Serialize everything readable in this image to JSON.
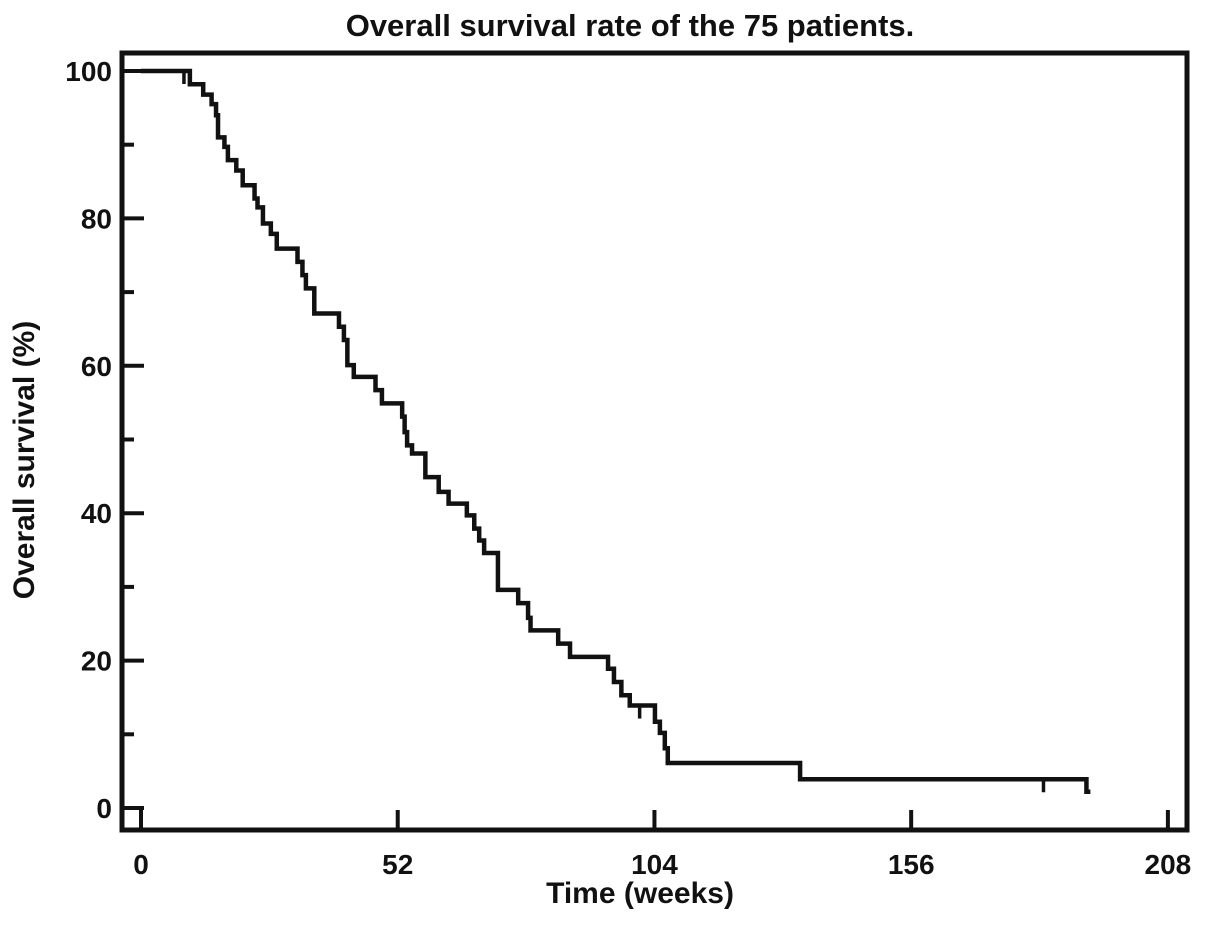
{
  "figure": {
    "title": "Overall survival rate of the 75 patients."
  },
  "colors": {
    "line": "#111111",
    "background": "#ffffff"
  },
  "chart_data": {
    "type": "line",
    "subtype": "kaplan-meier-step-curve",
    "title": "Overall survival rate of the 75 patients.",
    "xlabel": "Time (weeks)",
    "ylabel": "Overall survival (%)",
    "n_patients": 75,
    "xlim": [
      0,
      208
    ],
    "ylim": [
      0,
      100
    ],
    "x_ticks": [
      0,
      52,
      104,
      156,
      208
    ],
    "y_ticks_major": [
      0,
      20,
      40,
      60,
      80,
      100
    ],
    "y_ticks_minor": [
      10,
      30,
      50,
      70,
      90
    ],
    "grid": false,
    "legend": false,
    "series": [
      {
        "name": "Overall survival",
        "start": {
          "t": 0,
          "s": 100
        },
        "steps": [
          [
            9.9,
            98.2
          ],
          [
            12.6,
            96.8
          ],
          [
            14.3,
            95.5
          ],
          [
            15.2,
            94.0
          ],
          [
            15.6,
            91.0
          ],
          [
            16.9,
            89.7
          ],
          [
            17.6,
            87.9
          ],
          [
            19.3,
            86.5
          ],
          [
            20.6,
            84.5
          ],
          [
            23.0,
            82.7
          ],
          [
            23.6,
            81.5
          ],
          [
            24.7,
            79.3
          ],
          [
            26.3,
            77.9
          ],
          [
            27.5,
            75.9
          ],
          [
            31.7,
            74.1
          ],
          [
            32.7,
            72.3
          ],
          [
            33.4,
            70.5
          ],
          [
            35.1,
            67.1
          ],
          [
            40.1,
            65.3
          ],
          [
            41.1,
            63.5
          ],
          [
            41.8,
            60.1
          ],
          [
            43.1,
            58.5
          ],
          [
            47.5,
            56.7
          ],
          [
            48.8,
            54.9
          ],
          [
            52.9,
            53.1
          ],
          [
            53.4,
            51.0
          ],
          [
            53.9,
            49.2
          ],
          [
            54.9,
            48.1
          ],
          [
            57.6,
            44.9
          ],
          [
            60.3,
            42.9
          ],
          [
            62.3,
            41.3
          ],
          [
            66.0,
            39.7
          ],
          [
            67.5,
            37.9
          ],
          [
            68.5,
            36.3
          ],
          [
            69.5,
            34.6
          ],
          [
            72.3,
            29.6
          ],
          [
            76.4,
            27.8
          ],
          [
            78.4,
            25.8
          ],
          [
            78.9,
            24.1
          ],
          [
            84.5,
            22.3
          ],
          [
            86.9,
            20.5
          ],
          [
            94.6,
            18.9
          ],
          [
            95.8,
            17.1
          ],
          [
            97.3,
            15.3
          ],
          [
            99.0,
            13.9
          ],
          [
            104.1,
            11.7
          ],
          [
            105.1,
            10.2
          ],
          [
            106.1,
            8.1
          ],
          [
            106.7,
            6.1
          ],
          [
            133.5,
            3.9
          ],
          [
            191.5,
            2.2
          ]
        ],
        "end_time": 192.3,
        "censor_marks": [
          {
            "t": 8.7,
            "s": 100
          },
          {
            "t": 101.0,
            "s": 13.9
          },
          {
            "t": 182.8,
            "s": 3.9
          }
        ]
      }
    ]
  }
}
